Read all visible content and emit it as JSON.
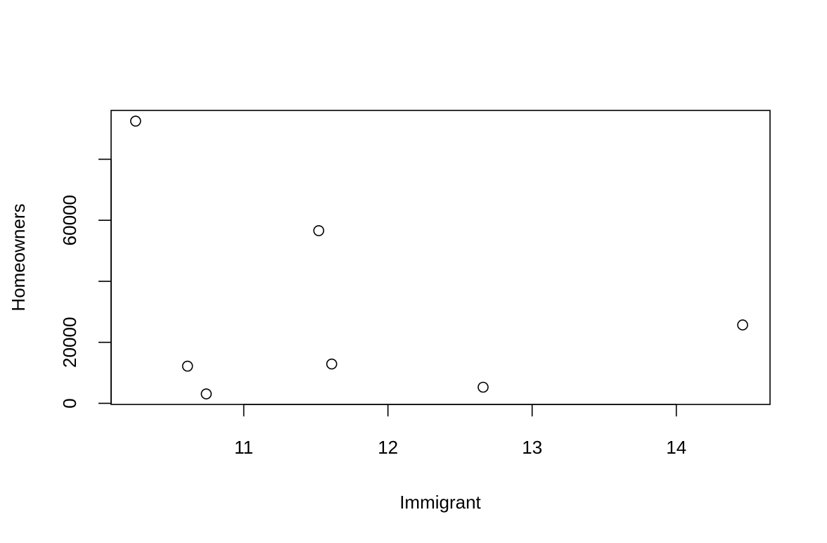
{
  "chart_data": {
    "type": "scatter",
    "xlabel": "Immigrant",
    "ylabel": "Homeowners",
    "xlim": [
      10.08,
      14.65
    ],
    "ylim": [
      -350,
      96000
    ],
    "x_ticks": [
      11,
      12,
      13,
      14
    ],
    "x_tick_labels": [
      "11",
      "12",
      "13",
      "14"
    ],
    "y_ticks": [
      0,
      20000,
      40000,
      60000,
      80000
    ],
    "y_tick_labels": [
      "0",
      "20000",
      "",
      "60000",
      ""
    ],
    "grid": false,
    "legend": "none",
    "marker": "open-circle",
    "points": [
      {
        "x": 10.25,
        "y": 92500
      },
      {
        "x": 10.61,
        "y": 12200
      },
      {
        "x": 10.74,
        "y": 3100
      },
      {
        "x": 11.52,
        "y": 56600
      },
      {
        "x": 11.61,
        "y": 12900
      },
      {
        "x": 12.66,
        "y": 5300
      },
      {
        "x": 14.46,
        "y": 25700
      }
    ]
  }
}
